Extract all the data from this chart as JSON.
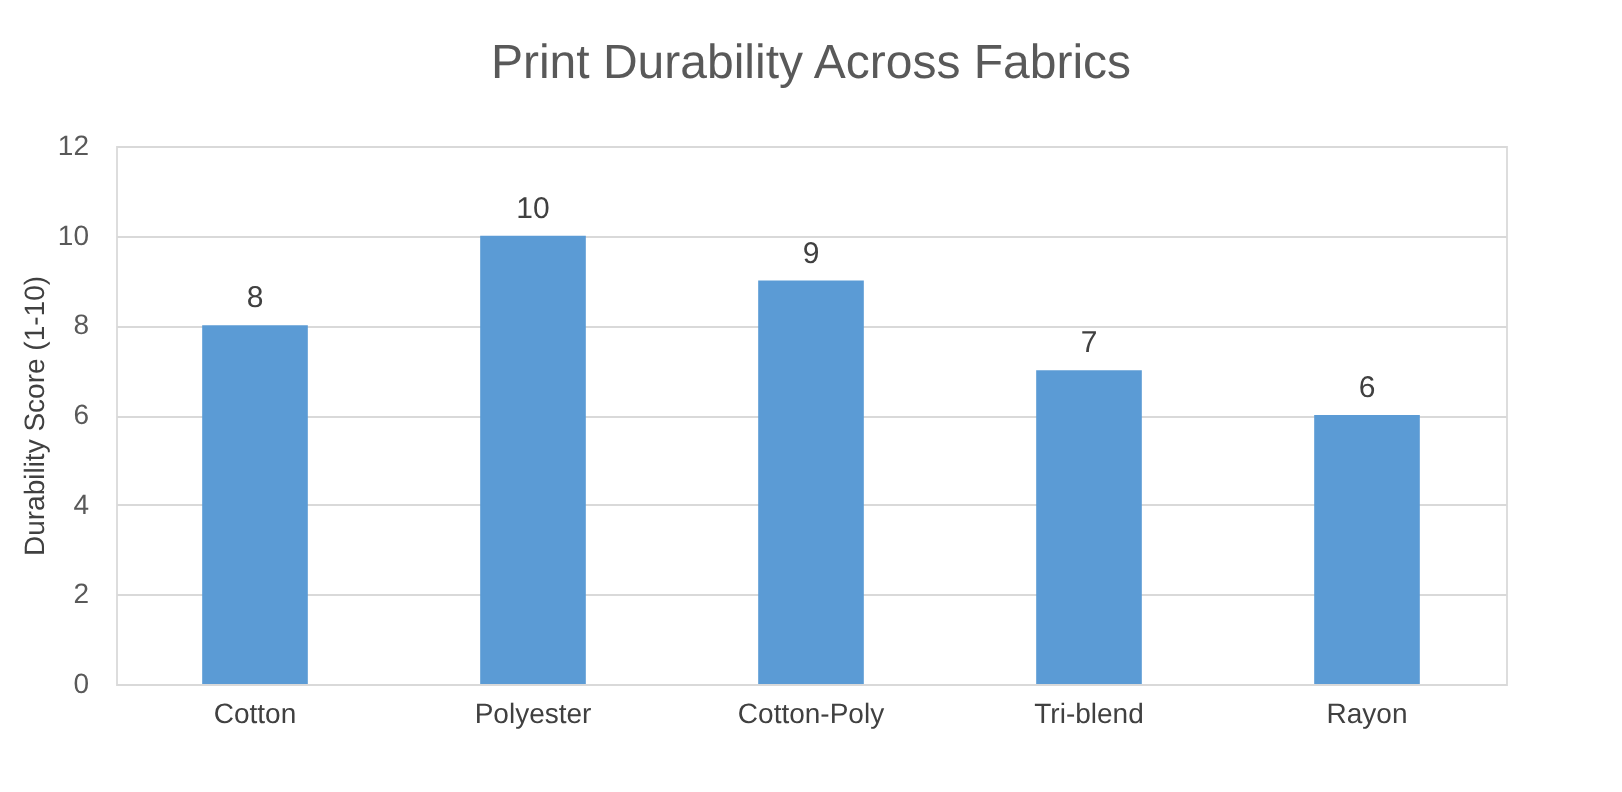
{
  "chart_data": {
    "type": "bar",
    "title": "Print Durability Across Fabrics",
    "ylabel": "Durability Score (1-10)",
    "categories": [
      "Cotton",
      "Polyester",
      "Cotton-Poly",
      "Tri-blend",
      "Rayon"
    ],
    "values": [
      8,
      10,
      9,
      7,
      6
    ],
    "color": "#5b9bd5",
    "ylim": [
      0,
      12
    ],
    "yticks": [
      0,
      2,
      4,
      6,
      8,
      10,
      12
    ],
    "grid": "y",
    "data_labels": true
  }
}
